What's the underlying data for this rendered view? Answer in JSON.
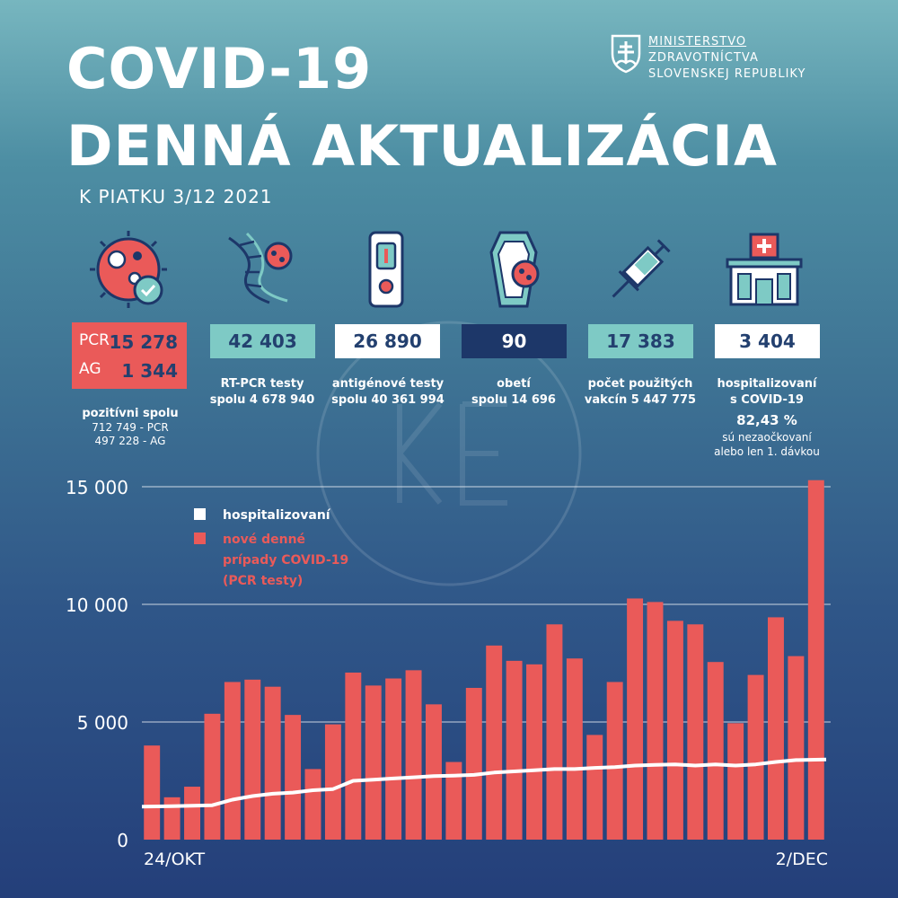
{
  "header": {
    "title_line1": "COVID-19",
    "title_line2": "DENNÁ AKTUALIZÁCIA",
    "date": "K PIATKU 3/12 2021",
    "ministry": [
      "MINISTERSTVO",
      "ZDRAVOTNÍCTVA",
      "SLOVENSKEJ REPUBLIKY"
    ]
  },
  "stats": {
    "positive": {
      "pcr_label": "PCR",
      "pcr_value": "15 278",
      "ag_label": "AG",
      "ag_value": "1 344",
      "caption": "pozitívni spolu",
      "detail_pcr": "712 749 - PCR",
      "detail_ag": "497 228 - AG"
    },
    "rtpcr": {
      "value": "42 403",
      "caption1": "RT-PCR testy",
      "caption2": "spolu 4 678 940"
    },
    "antigen": {
      "value": "26 890",
      "caption1": "antigénové testy",
      "caption2": "spolu 40 361 994"
    },
    "deaths": {
      "value": "90",
      "caption1": "obetí",
      "caption2": "spolu 14 696"
    },
    "vaccines": {
      "value": "17 383",
      "caption1": "počet použitých",
      "caption2": "vakcín  5 447 775"
    },
    "hospital": {
      "value": "3 404",
      "caption1": "hospitalizovaní",
      "caption2": "s COVID-19",
      "percent": "82,43 %",
      "note1": "sú nezaočkovaní",
      "note2": "alebo len 1. dávkou"
    }
  },
  "colors": {
    "red": "#ea5a59",
    "teal": "#7ecac5",
    "navy": "#1d3769",
    "white": "#ffffff"
  },
  "icons": [
    "virus-check-icon",
    "dna-virus-icon",
    "antigen-test-icon",
    "coffin-virus-icon",
    "syringe-icon",
    "hospital-icon"
  ],
  "chart_data": {
    "type": "bar",
    "title": "",
    "xlabel": "",
    "ylabel": "",
    "ylim": [
      0,
      15000
    ],
    "yticks": [
      0,
      5000,
      10000,
      15000
    ],
    "ytick_labels": [
      "0",
      "5 000",
      "10 000",
      "15 000"
    ],
    "xtick_labels": [
      "24/OKT",
      "2/DEC"
    ],
    "legend": [
      "hospitalizovaní",
      "nové denné prípady COVID-19 (PCR testy)"
    ],
    "legend_line1": "hospitalizovaní",
    "legend_line2": [
      "nové denné",
      "prípady COVID-19",
      "(PCR testy)"
    ],
    "series": [
      {
        "name": "nové denné prípady COVID-19 (PCR testy)",
        "type": "bar",
        "values": [
          4000,
          1800,
          2250,
          5350,
          6700,
          6800,
          6500,
          5300,
          3000,
          4900,
          7100,
          6550,
          6850,
          7200,
          5750,
          3300,
          6450,
          8250,
          7600,
          7450,
          9150,
          7700,
          4450,
          6700,
          10250,
          10100,
          9300,
          9150,
          7550,
          4950,
          7000,
          9450,
          7800,
          15278
        ]
      },
      {
        "name": "hospitalizovaní",
        "type": "line",
        "values": [
          1400,
          1420,
          1440,
          1460,
          1700,
          1850,
          1950,
          2000,
          2100,
          2150,
          2500,
          2550,
          2600,
          2650,
          2700,
          2720,
          2750,
          2850,
          2900,
          2950,
          3000,
          3000,
          3050,
          3080,
          3150,
          3180,
          3200,
          3150,
          3200,
          3150,
          3200,
          3300,
          3380,
          3404
        ]
      }
    ]
  }
}
